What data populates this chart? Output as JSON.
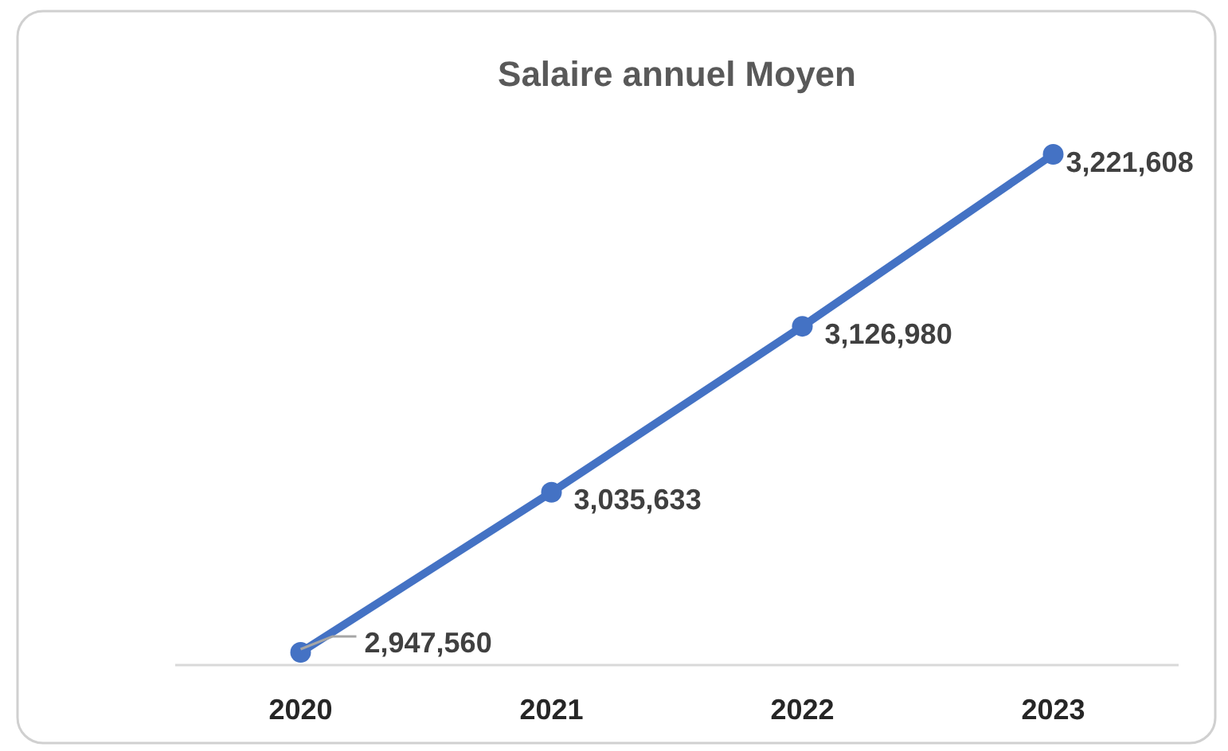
{
  "chart_data": {
    "type": "line",
    "title": "Salaire annuel Moyen",
    "categories": [
      "2020",
      "2021",
      "2022",
      "2023"
    ],
    "series": [
      {
        "color": "#4472c4",
        "values": [
          2947560,
          3035633,
          3126980,
          3221608
        ],
        "value_labels": [
          "2,947,560",
          "3,035,633",
          "3,126,980",
          "3,221,608"
        ]
      }
    ],
    "marker": "circle",
    "line_style": "solid",
    "tick_labels": "x"
  }
}
